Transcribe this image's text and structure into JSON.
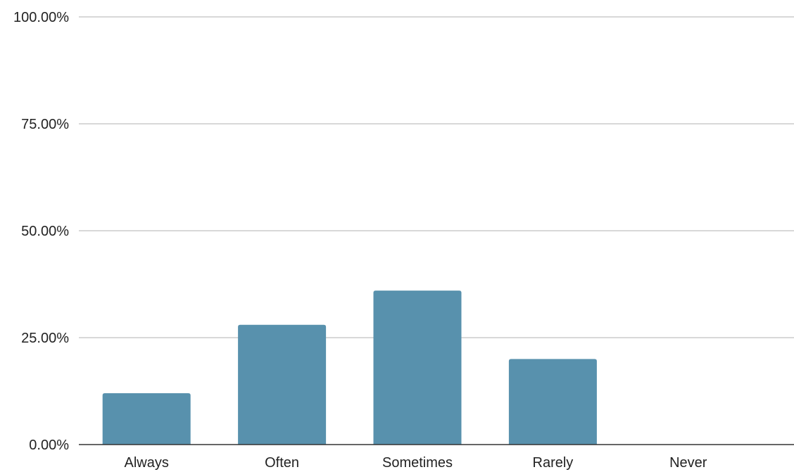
{
  "chart_data": {
    "type": "bar",
    "title": "",
    "xlabel": "",
    "ylabel": "",
    "categories": [
      "Always",
      "Often",
      "Sometimes",
      "Rarely",
      "Never"
    ],
    "values": [
      12,
      28,
      36,
      20,
      0
    ],
    "ylim": [
      0,
      100
    ],
    "yticks": [
      0,
      25,
      50,
      75,
      100
    ],
    "ytick_labels": [
      "0.00%",
      "25.00%",
      "50.00%",
      "75.00%",
      "100.00%"
    ],
    "grid": true,
    "legend": "none",
    "bar_color": "#5891ad",
    "grid_color": "#cccccc",
    "axis_color": "#333333"
  }
}
